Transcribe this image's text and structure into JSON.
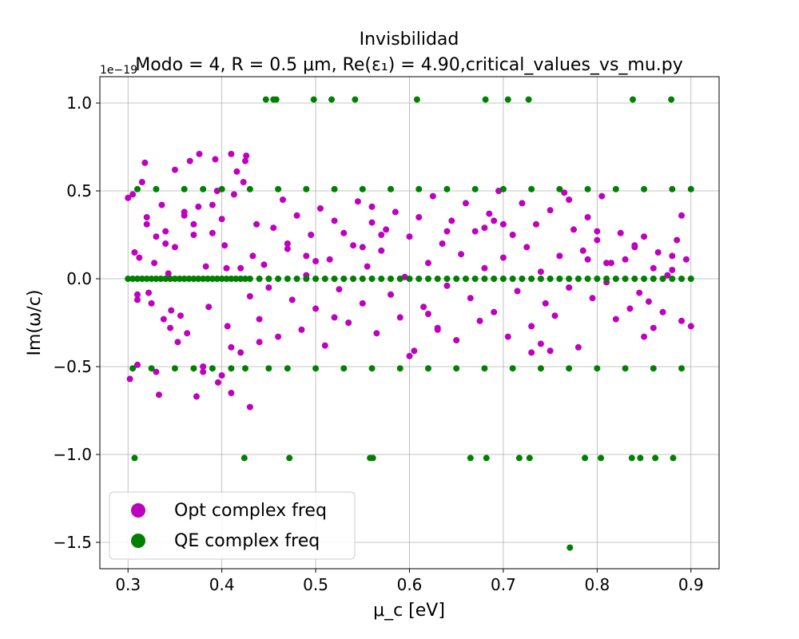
{
  "chart_data": {
    "type": "scatter",
    "title": "Invisbilidad",
    "subtitle": "Modo = 4, R = 0.5 μm, Re(ε₁) = 4.90,critical_values_vs_mu.py",
    "xlabel": "μ_c [eV]",
    "ylabel": "Im(ω/c)",
    "y_offset_label": "1e−19",
    "xlim": [
      0.27,
      0.93
    ],
    "ylim": [
      -1.65,
      1.15
    ],
    "x_ticks": [
      0.3,
      0.4,
      0.5,
      0.6,
      0.7,
      0.8,
      0.9
    ],
    "x_tick_labels": [
      "0.3",
      "0.4",
      "0.5",
      "0.6",
      "0.7",
      "0.8",
      "0.9"
    ],
    "y_ticks": [
      -1.5,
      -1.0,
      -0.5,
      0.0,
      0.5,
      1.0
    ],
    "y_tick_labels": [
      "−1.5",
      "−1.0",
      "−0.5",
      "0.0",
      "0.5",
      "1.0"
    ],
    "grid": true,
    "legend_position": "lower-left",
    "colors": {
      "opt": "#bf00bf",
      "qe": "#008000"
    },
    "series": [
      {
        "name": "Opt complex freq",
        "color": "#bf00bf",
        "x": [
          0.3,
          0.302,
          0.305,
          0.307,
          0.31,
          0.312,
          0.315,
          0.318,
          0.32,
          0.322,
          0.325,
          0.328,
          0.33,
          0.333,
          0.336,
          0.338,
          0.34,
          0.343,
          0.346,
          0.35,
          0.353,
          0.356,
          0.36,
          0.363,
          0.366,
          0.37,
          0.373,
          0.376,
          0.38,
          0.383,
          0.386,
          0.39,
          0.393,
          0.396,
          0.4,
          0.403,
          0.406,
          0.41,
          0.413,
          0.416,
          0.42,
          0.423,
          0.426,
          0.43,
          0.433,
          0.437,
          0.44,
          0.445,
          0.45,
          0.455,
          0.46,
          0.465,
          0.47,
          0.475,
          0.48,
          0.485,
          0.49,
          0.495,
          0.5,
          0.505,
          0.51,
          0.515,
          0.52,
          0.525,
          0.53,
          0.535,
          0.54,
          0.545,
          0.55,
          0.555,
          0.56,
          0.565,
          0.57,
          0.575,
          0.58,
          0.585,
          0.59,
          0.595,
          0.6,
          0.605,
          0.61,
          0.615,
          0.62,
          0.625,
          0.63,
          0.635,
          0.64,
          0.645,
          0.65,
          0.655,
          0.66,
          0.665,
          0.67,
          0.675,
          0.68,
          0.685,
          0.69,
          0.695,
          0.7,
          0.705,
          0.71,
          0.715,
          0.72,
          0.725,
          0.73,
          0.735,
          0.74,
          0.745,
          0.75,
          0.755,
          0.76,
          0.765,
          0.77,
          0.775,
          0.78,
          0.785,
          0.79,
          0.795,
          0.8,
          0.805,
          0.81,
          0.815,
          0.82,
          0.825,
          0.83,
          0.835,
          0.84,
          0.845,
          0.85,
          0.855,
          0.86,
          0.865,
          0.87,
          0.875,
          0.88,
          0.885,
          0.89,
          0.895,
          0.9,
          0.31,
          0.35,
          0.38,
          0.395,
          0.41,
          0.42,
          0.33,
          0.36,
          0.39,
          0.41,
          0.425,
          0.47,
          0.52,
          0.56,
          0.6,
          0.64,
          0.7,
          0.74,
          0.77,
          0.81,
          0.86,
          0.32,
          0.34,
          0.37,
          0.4,
          0.43,
          0.49,
          0.55,
          0.62,
          0.68,
          0.73,
          0.79,
          0.84,
          0.89,
          0.31,
          0.345,
          0.375,
          0.405,
          0.44,
          0.5,
          0.57,
          0.63,
          0.69,
          0.75,
          0.8,
          0.85,
          0.88
        ],
        "values": [
          0.46,
          -0.57,
          0.48,
          0.15,
          -0.49,
          0.12,
          0.55,
          0.66,
          0.31,
          -0.08,
          -0.14,
          0.09,
          0.24,
          -0.66,
          0.42,
          -0.23,
          0.27,
          0.03,
          -0.18,
          0.18,
          -0.36,
          -0.21,
          0.38,
          -0.31,
          0.67,
          0.25,
          -0.67,
          0.71,
          -0.5,
          0.07,
          -0.16,
          0.26,
          0.68,
          -0.59,
          0.34,
          0.19,
          -0.27,
          0.71,
          0.48,
          0.61,
          -0.42,
          0.55,
          0.7,
          -0.1,
          0.13,
          0.31,
          -0.23,
          0.08,
          -0.05,
          0.29,
          -0.33,
          0.45,
          0.2,
          -0.12,
          0.36,
          -0.29,
          0.02,
          0.25,
          -0.17,
          0.4,
          -0.38,
          0.11,
          0.33,
          -0.06,
          0.26,
          -0.25,
          0.19,
          0.44,
          -0.14,
          0.07,
          0.32,
          -0.31,
          0.16,
          0.28,
          -0.09,
          0.38,
          -0.22,
          0.01,
          0.24,
          -0.41,
          0.35,
          -0.16,
          0.09,
          0.47,
          -0.28,
          0.2,
          -0.04,
          0.33,
          -0.35,
          0.14,
          0.43,
          -0.11,
          0.27,
          -0.24,
          0.06,
          0.37,
          -0.19,
          0.5,
          0.12,
          -0.33,
          0.25,
          -0.07,
          0.43,
          0.18,
          -0.27,
          0.31,
          0.04,
          -0.14,
          0.39,
          -0.21,
          0.13,
          0.49,
          -0.05,
          0.28,
          -0.39,
          0.16,
          0.35,
          -0.11,
          0.22,
          0.47,
          -0.02,
          0.09,
          -0.23,
          0.26,
          0.11,
          -0.17,
          0.19,
          -0.08,
          0.24,
          -0.13,
          0.06,
          0.15,
          -0.19,
          0.02,
          0.13,
          0.22,
          -0.24,
          0.11,
          -0.27,
          -0.12,
          0.62,
          -0.53,
          0.5,
          -0.39,
          0.06,
          -0.53,
          0.36,
          0.42,
          -0.65,
          0.67,
          0.17,
          -0.22,
          0.41,
          -0.44,
          0.27,
          0.31,
          -0.37,
          0.45,
          0.09,
          -0.28,
          0.35,
          0.2,
          0.31,
          -0.55,
          -0.73,
          0.13,
          0.18,
          -0.2,
          0.29,
          -0.42,
          0.11,
          0.18,
          0.36,
          -0.09,
          -0.28,
          0.41,
          0.06,
          -0.36,
          0.1,
          0.25,
          -0.29,
          0.33,
          -0.41,
          0.27,
          -0.33,
          0.05
        ]
      },
      {
        "name": "QE complex freq",
        "color": "#008000",
        "x": [
          0.3,
          0.305,
          0.31,
          0.315,
          0.32,
          0.325,
          0.33,
          0.335,
          0.34,
          0.345,
          0.35,
          0.355,
          0.36,
          0.365,
          0.37,
          0.375,
          0.38,
          0.385,
          0.39,
          0.395,
          0.4,
          0.405,
          0.41,
          0.415,
          0.42,
          0.425,
          0.43,
          0.44,
          0.45,
          0.46,
          0.47,
          0.48,
          0.49,
          0.5,
          0.51,
          0.52,
          0.53,
          0.54,
          0.55,
          0.56,
          0.57,
          0.58,
          0.59,
          0.6,
          0.61,
          0.62,
          0.63,
          0.64,
          0.65,
          0.66,
          0.67,
          0.68,
          0.69,
          0.7,
          0.71,
          0.72,
          0.73,
          0.74,
          0.75,
          0.76,
          0.77,
          0.78,
          0.79,
          0.8,
          0.81,
          0.82,
          0.83,
          0.84,
          0.85,
          0.86,
          0.87,
          0.88,
          0.89,
          0.9,
          0.31,
          0.33,
          0.36,
          0.38,
          0.4,
          0.43,
          0.46,
          0.49,
          0.52,
          0.55,
          0.58,
          0.61,
          0.64,
          0.67,
          0.7,
          0.73,
          0.76,
          0.79,
          0.82,
          0.85,
          0.88,
          0.9,
          0.305,
          0.325,
          0.35,
          0.37,
          0.39,
          0.41,
          0.425,
          0.45,
          0.47,
          0.5,
          0.53,
          0.56,
          0.59,
          0.62,
          0.65,
          0.68,
          0.71,
          0.74,
          0.77,
          0.8,
          0.83,
          0.86,
          0.89,
          0.447,
          0.455,
          0.458,
          0.498,
          0.517,
          0.542,
          0.608,
          0.681,
          0.705,
          0.727,
          0.838,
          0.879,
          0.307,
          0.424,
          0.472,
          0.558,
          0.561,
          0.665,
          0.682,
          0.717,
          0.728,
          0.787,
          0.804,
          0.837,
          0.846,
          0.862,
          0.881,
          0.771
        ],
        "values": [
          0,
          0,
          0,
          0,
          0,
          0,
          0,
          0,
          0,
          0,
          0,
          0,
          0,
          0,
          0,
          0,
          0,
          0,
          0,
          0,
          0,
          0,
          0,
          0,
          0,
          0,
          0,
          0,
          0,
          0,
          0,
          0,
          0,
          0,
          0,
          0,
          0,
          0,
          0,
          0,
          0,
          0,
          0,
          0,
          0,
          0,
          0,
          0,
          0,
          0,
          0,
          0,
          0,
          0,
          0,
          0,
          0,
          0,
          0,
          0,
          0,
          0,
          0,
          0,
          0,
          0,
          0,
          0,
          0,
          0,
          0,
          0,
          0,
          0,
          0.51,
          0.51,
          0.51,
          0.51,
          0.51,
          0.51,
          0.51,
          0.51,
          0.51,
          0.51,
          0.51,
          0.51,
          0.51,
          0.51,
          0.51,
          0.51,
          0.51,
          0.51,
          0.51,
          0.51,
          0.51,
          0.51,
          -0.51,
          -0.51,
          -0.51,
          -0.51,
          -0.51,
          -0.51,
          -0.51,
          -0.51,
          -0.51,
          -0.51,
          -0.51,
          -0.51,
          -0.51,
          -0.51,
          -0.51,
          -0.51,
          -0.51,
          -0.51,
          -0.51,
          -0.51,
          -0.51,
          -0.51,
          -0.51,
          1.02,
          1.02,
          1.02,
          1.02,
          1.02,
          1.02,
          1.02,
          1.02,
          1.02,
          1.02,
          1.02,
          1.02,
          -1.02,
          -1.02,
          -1.02,
          -1.02,
          -1.02,
          -1.02,
          -1.02,
          -1.02,
          -1.02,
          -1.02,
          -1.02,
          -1.02,
          -1.02,
          -1.02,
          -1.02,
          -1.53
        ]
      }
    ]
  }
}
